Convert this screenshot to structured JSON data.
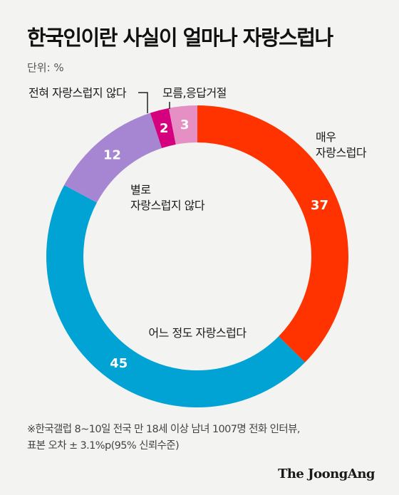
{
  "title": "한국인이란 사실이 얼마나 자랑스럽나",
  "unit": "단위: %",
  "chart_data": {
    "type": "pie",
    "title": "한국인이란 사실이 얼마나 자랑스럽나",
    "unit": "단위: %",
    "categories": [
      "매우 자랑스럽다",
      "어느 정도 자랑스럽다",
      "별로 자랑스럽지 않다",
      "전혀 자랑스럽지 않다",
      "모름,응답거절"
    ],
    "label_lines": [
      [
        "매우",
        "자랑스럽다"
      ],
      [
        "어느 정도 자랑스럽다"
      ],
      [
        "별로",
        "자랑스럽지 않다"
      ],
      [
        "전혀 자랑스럽지 않다"
      ],
      [
        "모름,응답거절"
      ]
    ],
    "values": [
      37,
      45,
      12,
      2,
      3
    ],
    "colors": [
      "#ff3300",
      "#00a3d4",
      "#a686d2",
      "#d4007e",
      "#e58fc4"
    ],
    "donut": true
  },
  "note": [
    "※한국갤럽 8~10일 전국 만 18세 이상 남녀 1007명 전화 인터뷰,",
    "표본 오차 ± 3.1%p(95% 신뢰수준)"
  ],
  "brand": "The JoongAng"
}
